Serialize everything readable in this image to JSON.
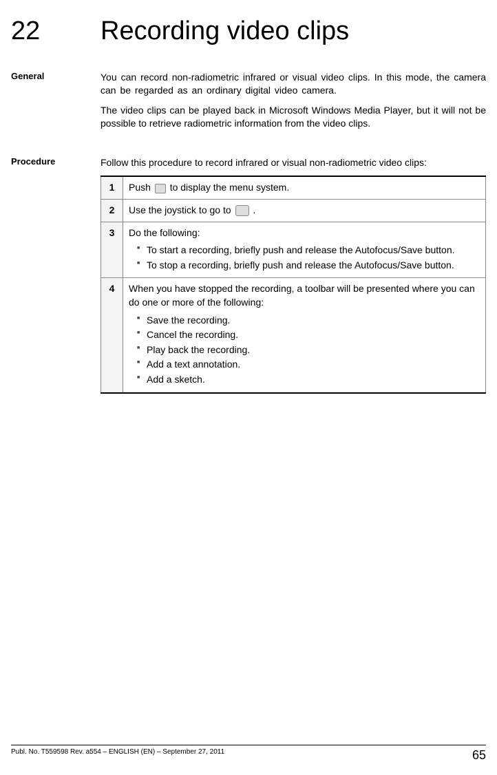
{
  "chapter": {
    "number": "22",
    "title": "Recording video clips"
  },
  "sections": {
    "general": {
      "label": "General",
      "p1": "You can record non-radiometric infrared or visual video clips. In this mode, the camera can be regarded as an ordinary digital video camera.",
      "p2": "The video clips can be played back in Microsoft Windows Media Player, but it will not be possible to retrieve radiometric information from the video clips."
    },
    "procedure": {
      "label": "Procedure",
      "intro": "Follow this procedure to record infrared or visual non-radiometric video clips:",
      "steps": [
        {
          "n": "1",
          "pre": "Push ",
          "post": " to display the menu system.",
          "icon": "menu-icon"
        },
        {
          "n": "2",
          "pre": "Use the joystick to go to  ",
          "post": " .",
          "icon": "camera-icon"
        },
        {
          "n": "3",
          "text": "Do the following:",
          "bullets": [
            "To start a recording, briefly push and release the Autofocus/Save button.",
            "To stop a recording, briefly push and release the Autofocus/Save button."
          ]
        },
        {
          "n": "4",
          "text": "When you have stopped the recording, a toolbar will be presented where you can do one or more of the following:",
          "bullets": [
            "Save the recording.",
            "Cancel the recording.",
            "Play back the recording.",
            "Add a text annotation.",
            "Add a sketch."
          ]
        }
      ]
    }
  },
  "footer": {
    "pub": "Publ. No. T559598 Rev. a554 – ENGLISH (EN) – September 27, 2011",
    "page": "65"
  }
}
